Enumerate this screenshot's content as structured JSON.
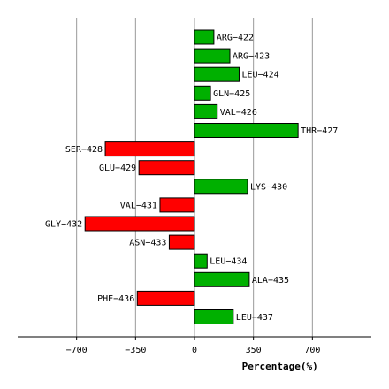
{
  "chart_data": {
    "type": "bar",
    "orientation": "horizontal",
    "categories": [
      "ARG-422",
      "ARG-423",
      "LEU-424",
      "GLN-425",
      "VAL-426",
      "THR-427",
      "SER-428",
      "GLU-429",
      "LYS-430",
      "VAL-431",
      "GLY-432",
      "ASN-433",
      "LEU-434",
      "ALA-435",
      "PHE-436",
      "LEU-437"
    ],
    "values": [
      115,
      210,
      265,
      95,
      135,
      615,
      -530,
      -330,
      315,
      -205,
      -650,
      -150,
      75,
      325,
      -340,
      230
    ],
    "xlabel": "Percentage(%)",
    "ylabel": "",
    "title": "",
    "xlim": [
      -1050,
      1050
    ],
    "xticks": [
      -700,
      -350,
      0,
      350,
      700
    ],
    "grid": true,
    "colors": {
      "positive": "#00b000",
      "negative": "#ff0000",
      "grid": "#999999"
    }
  }
}
